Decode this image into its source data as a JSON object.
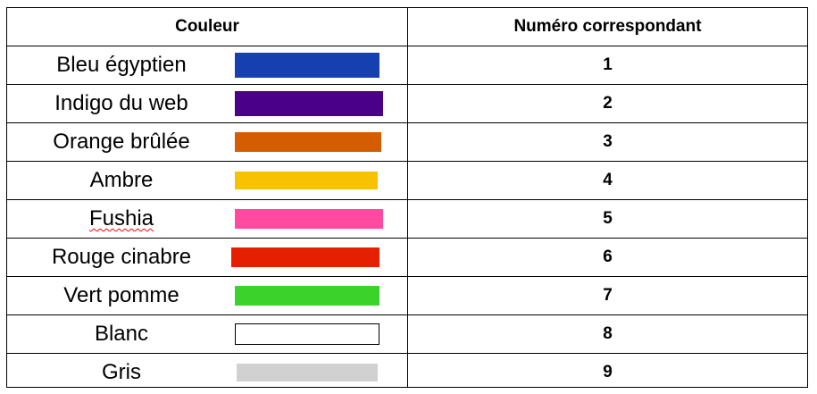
{
  "table": {
    "header": {
      "color_label": "Couleur",
      "number_label": "Numéro correspondant"
    },
    "rows": [
      {
        "name": "Bleu égyptien",
        "number": "1",
        "color": "#1640b0"
      },
      {
        "name": "Indigo du web",
        "number": "2",
        "color": "#4b0089"
      },
      {
        "name": "Orange brûlée",
        "number": "3",
        "color": "#d35d00"
      },
      {
        "name": "Ambre",
        "number": "4",
        "color": "#f7c300"
      },
      {
        "name": "Fushia",
        "number": "5",
        "color": "#ff4aa0"
      },
      {
        "name": "Rouge cinabre",
        "number": "6",
        "color": "#e52000"
      },
      {
        "name": "Vert pomme",
        "number": "7",
        "color": "#3bd22c"
      },
      {
        "name": "Blanc",
        "number": "8",
        "color": "#ffffff"
      },
      {
        "name": "Gris",
        "number": "9",
        "color": "#d1d1d1"
      }
    ]
  }
}
